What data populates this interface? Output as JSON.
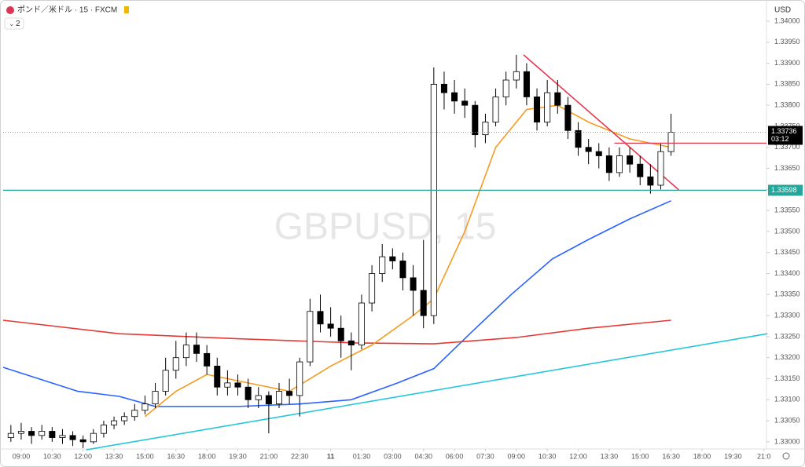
{
  "chart_data": {
    "type": "candlestick",
    "title": "ポンド／米ドル · 15 · FXCM",
    "watermark": "GBPUSD, 15",
    "indicator_count": "2",
    "currency": "USD",
    "xlim": [
      -3.5,
      144.5
    ],
    "ylim": [
      1.32983,
      1.34041
    ],
    "xticks": [
      {
        "value": 0,
        "label": "09:00"
      },
      {
        "value": 6,
        "label": "10:30"
      },
      {
        "value": 12,
        "label": "12:00"
      },
      {
        "value": 18,
        "label": "13:30"
      },
      {
        "value": 24,
        "label": "15:00"
      },
      {
        "value": 30,
        "label": "16:30"
      },
      {
        "value": 36,
        "label": "18:00"
      },
      {
        "value": 42,
        "label": "19:30"
      },
      {
        "value": 48,
        "label": "21:00"
      },
      {
        "value": 54,
        "label": "22:30"
      },
      {
        "value": 60,
        "label": "11"
      },
      {
        "value": 66,
        "label": "01:30"
      },
      {
        "value": 72,
        "label": "03:00"
      },
      {
        "value": 78,
        "label": "04:30"
      },
      {
        "value": 84,
        "label": "06:00"
      },
      {
        "value": 90,
        "label": "07:30"
      },
      {
        "value": 96,
        "label": "09:00"
      },
      {
        "value": 102,
        "label": "10:30"
      },
      {
        "value": 108,
        "label": "12:00"
      },
      {
        "value": 114,
        "label": "13:30"
      },
      {
        "value": 120,
        "label": "15:00"
      },
      {
        "value": 126,
        "label": "16:30"
      },
      {
        "value": 132,
        "label": "18:00"
      },
      {
        "value": 138,
        "label": "19:30"
      },
      {
        "value": 144,
        "label": "21:0"
      }
    ],
    "yticks": [
      {
        "value": 1.33,
        "label": "1.33000"
      },
      {
        "value": 1.3305,
        "label": "1.33050"
      },
      {
        "value": 1.331,
        "label": "1.33100"
      },
      {
        "value": 1.3315,
        "label": "1.33150"
      },
      {
        "value": 1.332,
        "label": "1.33200"
      },
      {
        "value": 1.3325,
        "label": "1.33250"
      },
      {
        "value": 1.333,
        "label": "1.33300"
      },
      {
        "value": 1.3335,
        "label": "1.33350"
      },
      {
        "value": 1.334,
        "label": "1.33400"
      },
      {
        "value": 1.3345,
        "label": "1.33450"
      },
      {
        "value": 1.335,
        "label": "1.33500"
      },
      {
        "value": 1.3355,
        "label": "1.33550"
      },
      {
        "value": 1.336,
        "label": "1.33600"
      },
      {
        "value": 1.3365,
        "label": "1.33650"
      },
      {
        "value": 1.337,
        "label": "1.33700"
      },
      {
        "value": 1.3375,
        "label": "1.33750"
      },
      {
        "value": 1.338,
        "label": "1.33800"
      },
      {
        "value": 1.3385,
        "label": "1.33850"
      },
      {
        "value": 1.339,
        "label": "1.33900"
      },
      {
        "value": 1.3395,
        "label": "1.33950"
      },
      {
        "value": 1.34,
        "label": "1.34000"
      }
    ],
    "up_color": "#ffffff",
    "down_color": "#000000",
    "wick_color": "#000000",
    "x": [
      -2,
      0,
      2,
      4,
      6,
      8,
      10,
      12,
      14,
      16,
      18,
      20,
      22,
      24,
      26,
      28,
      30,
      32,
      34,
      36,
      38,
      40,
      42,
      44,
      46,
      48,
      50,
      52,
      54,
      56,
      58,
      60,
      62,
      64,
      66,
      68,
      70,
      72,
      74,
      76,
      78,
      80,
      82,
      84,
      86,
      88,
      90,
      92,
      94,
      96,
      98,
      100,
      102,
      104,
      106,
      108,
      110,
      112,
      114,
      116,
      118,
      120,
      122,
      124,
      126
    ],
    "open": [
      1.3301,
      1.3302,
      1.33025,
      1.33015,
      1.33025,
      1.3301,
      1.33015,
      1.33005,
      1.33,
      1.3302,
      1.3304,
      1.3305,
      1.3306,
      1.33075,
      1.3309,
      1.3312,
      1.3317,
      1.332,
      1.3323,
      1.3321,
      1.3318,
      1.3313,
      1.3314,
      1.3313,
      1.331,
      1.3311,
      1.3309,
      1.3312,
      1.3311,
      1.3319,
      1.3331,
      1.3328,
      1.3327,
      1.3324,
      1.3323,
      1.3333,
      1.334,
      1.3344,
      1.3343,
      1.3339,
      1.3336,
      1.333,
      1.3385,
      1.3383,
      1.3381,
      1.338,
      1.3373,
      1.3376,
      1.3382,
      1.3386,
      1.3388,
      1.3382,
      1.3376,
      1.3383,
      1.338,
      1.3374,
      1.337,
      1.3369,
      1.3368,
      1.3364,
      1.3368,
      1.3366,
      1.3363,
      1.3361,
      1.3369
    ],
    "high": [
      1.3304,
      1.33045,
      1.33035,
      1.3304,
      1.33035,
      1.3303,
      1.33025,
      1.33015,
      1.3303,
      1.3305,
      1.3306,
      1.3307,
      1.3309,
      1.3311,
      1.3314,
      1.332,
      1.3324,
      1.3326,
      1.3326,
      1.3323,
      1.332,
      1.3317,
      1.3316,
      1.3315,
      1.3313,
      1.3312,
      1.3314,
      1.3315,
      1.332,
      1.3334,
      1.3335,
      1.3332,
      1.333,
      1.3326,
      1.3335,
      1.3342,
      1.3347,
      1.3346,
      1.3345,
      1.3342,
      1.3348,
      1.3389,
      1.3388,
      1.3386,
      1.3384,
      1.3381,
      1.3378,
      1.3384,
      1.3388,
      1.3392,
      1.339,
      1.3384,
      1.3386,
      1.3386,
      1.3382,
      1.3376,
      1.3372,
      1.3371,
      1.337,
      1.337,
      1.337,
      1.3368,
      1.3366,
      1.3371,
      1.3378
    ],
    "low": [
      1.33,
      1.33005,
      1.32995,
      1.33005,
      1.33,
      1.32995,
      1.3299,
      1.32985,
      1.32995,
      1.3301,
      1.3303,
      1.3304,
      1.3305,
      1.33065,
      1.3308,
      1.3311,
      1.3315,
      1.3318,
      1.3319,
      1.3316,
      1.3311,
      1.3311,
      1.3311,
      1.3308,
      1.3308,
      1.3302,
      1.3308,
      1.3309,
      1.3306,
      1.3318,
      1.3326,
      1.3325,
      1.332,
      1.3317,
      1.3322,
      1.3331,
      1.3338,
      1.3341,
      1.3336,
      1.333,
      1.3327,
      1.3328,
      1.3379,
      1.3378,
      1.3377,
      1.337,
      1.3371,
      1.3375,
      1.338,
      1.3384,
      1.338,
      1.3374,
      1.3375,
      1.3378,
      1.3372,
      1.3368,
      1.3366,
      1.3365,
      1.3362,
      1.3363,
      1.3364,
      1.3361,
      1.3359,
      1.336,
      1.3368
    ],
    "close": [
      1.3302,
      1.33025,
      1.33015,
      1.33025,
      1.3301,
      1.33015,
      1.33005,
      1.33,
      1.3302,
      1.3304,
      1.3305,
      1.3306,
      1.33075,
      1.3309,
      1.3312,
      1.3317,
      1.332,
      1.3323,
      1.3321,
      1.3318,
      1.3313,
      1.3314,
      1.3313,
      1.331,
      1.3311,
      1.3309,
      1.3312,
      1.3311,
      1.3319,
      1.3331,
      1.3328,
      1.3327,
      1.3324,
      1.3323,
      1.3333,
      1.334,
      1.3344,
      1.3343,
      1.3339,
      1.3336,
      1.333,
      1.3385,
      1.3383,
      1.3381,
      1.338,
      1.3373,
      1.3376,
      1.3382,
      1.3386,
      1.3388,
      1.3382,
      1.3376,
      1.3383,
      1.338,
      1.3374,
      1.337,
      1.3369,
      1.3368,
      1.3364,
      1.3368,
      1.3366,
      1.3363,
      1.3361,
      1.3369,
      1.33736
    ],
    "series": [
      {
        "color": "#2962ff",
        "x": [
          -3.5,
          11,
          19,
          26,
          42,
          54,
          64,
          73,
          80,
          87,
          95,
          103,
          110,
          118,
          126
        ],
        "values": [
          1.33177,
          1.3312,
          1.33108,
          1.33084,
          1.33084,
          1.3309,
          1.331,
          1.3314,
          1.33174,
          1.33257,
          1.3335,
          1.33435,
          1.33481,
          1.3353,
          1.33573
        ]
      },
      {
        "color": "#e53935",
        "x": [
          -3.5,
          19,
          42,
          65,
          80,
          96,
          110,
          126
        ],
        "values": [
          1.33289,
          1.33257,
          1.33245,
          1.33235,
          1.33233,
          1.33248,
          1.3327,
          1.33289
        ]
      },
      {
        "color": "#f59b20",
        "x": [
          24,
          30,
          36,
          44,
          52,
          60,
          68,
          76,
          80,
          86,
          92,
          98,
          104,
          110,
          118,
          126
        ],
        "values": [
          1.3306,
          1.3312,
          1.3316,
          1.3314,
          1.3312,
          1.3318,
          1.3323,
          1.333,
          1.3334,
          1.335,
          1.337,
          1.3379,
          1.338,
          1.3376,
          1.3372,
          1.337
        ]
      },
      {
        "color": "#26c6da",
        "x": [
          12.6,
          144.7
        ],
        "values": [
          1.32981,
          1.33257
        ]
      },
      {
        "color": "#e53950",
        "x": [
          97.4,
          127.5
        ],
        "values": [
          1.3392,
          1.33599
        ]
      }
    ],
    "hlines": [
      {
        "value": 1.33598,
        "color": "#26a69a"
      }
    ],
    "red_level": {
      "value": 1.3371,
      "from": 115,
      "color": "#e53950"
    },
    "last_price": 1.33736,
    "countdown": "03:12"
  }
}
